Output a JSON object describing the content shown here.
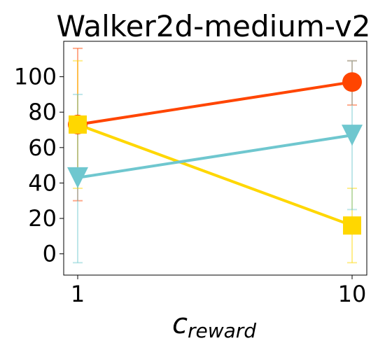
{
  "chart_data": {
    "type": "line",
    "title": "Walker2d-medium-v2",
    "xlabel": "c",
    "xlabel_subscript": "reward",
    "ylabel": "",
    "x": [
      1,
      10
    ],
    "x_tick_labels": [
      "1",
      "10"
    ],
    "y_ticks": [
      0,
      20,
      40,
      60,
      80,
      100
    ],
    "y_tick_labels": [
      "0",
      "20",
      "40",
      "60",
      "80",
      "100"
    ],
    "ylim": [
      -12,
      120
    ],
    "grid": false,
    "series": [
      {
        "color": "#ff4500",
        "marker": "circle",
        "values": [
          73,
          97
        ],
        "err_low": [
          30,
          84
        ],
        "err_high": [
          116,
          109
        ]
      },
      {
        "color": "#ffd700",
        "marker": "square",
        "values": [
          73,
          16
        ],
        "err_low": [
          37,
          -5
        ],
        "err_high": [
          109,
          37
        ]
      },
      {
        "color": "#6fc7cf",
        "marker": "triangle-down",
        "values": [
          43,
          67
        ],
        "err_low": [
          -5,
          25
        ],
        "err_high": [
          90,
          109
        ]
      }
    ]
  }
}
